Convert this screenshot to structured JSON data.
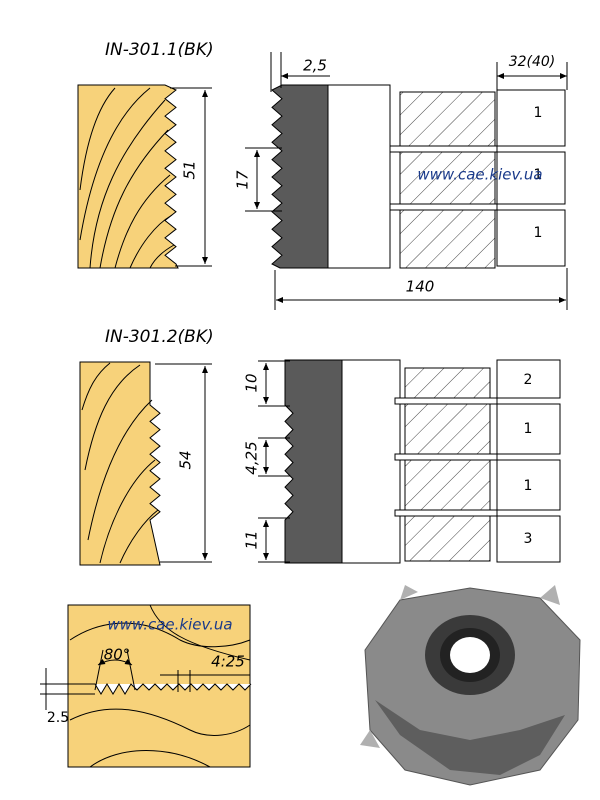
{
  "profile_1": {
    "title": "IN-301.1(BK)",
    "tooth_depth": "2,5",
    "width": "32(40)",
    "height": "51",
    "pitch": "17",
    "diameter": "140",
    "watermark": "www.cae.kiev.ua",
    "spacer_labels": [
      "1",
      "1",
      "1"
    ]
  },
  "profile_2": {
    "title": "IN-301.2(BK)",
    "top_offset": "10",
    "height": "54",
    "pitch": "4,25",
    "bottom_offset": "11",
    "spacer_labels": [
      "2",
      "1",
      "1",
      "3"
    ]
  },
  "detail": {
    "watermark": "www.cae.kiev.ua",
    "angle": "80°",
    "pitch": "4:25",
    "depth": "2.5"
  }
}
